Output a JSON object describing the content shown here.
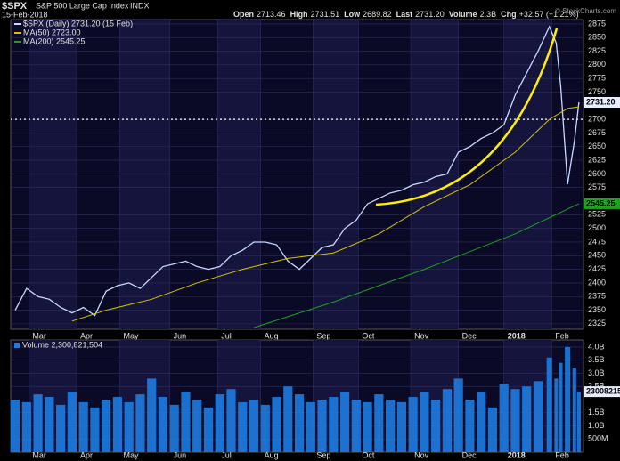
{
  "chart_data": [
    {
      "type": "line",
      "symbol": "$SPX",
      "name": "S&P 500 Large Cap Index",
      "exchange": "INDX",
      "date": "15-Feb-2018",
      "quote": [
        {
          "label": "Open",
          "value": "2713.46"
        },
        {
          "label": "High",
          "value": "2731.51"
        },
        {
          "label": "Low",
          "value": "2689.82"
        },
        {
          "label": "Last",
          "value": "2731.20"
        },
        {
          "label": "Volume",
          "value": "2.3B"
        },
        {
          "label": "Chg",
          "value": "+32.57 (+1.21%)"
        }
      ],
      "watermark": "© StockCharts.com",
      "xlim": [
        -2,
        250
      ],
      "xticks": [
        {
          "value": 6,
          "label": "Mar"
        },
        {
          "value": 27,
          "label": "Apr"
        },
        {
          "value": 46,
          "label": "May"
        },
        {
          "value": 68,
          "label": "Jun"
        },
        {
          "value": 89,
          "label": "Jul"
        },
        {
          "value": 108,
          "label": "Aug"
        },
        {
          "value": 131,
          "label": "Sep"
        },
        {
          "value": 151,
          "label": "Oct"
        },
        {
          "value": 174,
          "label": "Nov"
        },
        {
          "value": 195,
          "label": "Dec"
        },
        {
          "value": 215,
          "label": "2018"
        },
        {
          "value": 236,
          "label": "Feb"
        }
      ],
      "ylim": [
        2315,
        2883
      ],
      "yticks": [
        2325,
        2350,
        2375,
        2400,
        2425,
        2450,
        2475,
        2500,
        2525,
        2575,
        2600,
        2625,
        2650,
        2675,
        2700,
        2750,
        2775,
        2800,
        2825,
        2850,
        2875
      ],
      "grid": true,
      "reference_line": 2700,
      "series": [
        {
          "name": "$SPX (Daily) 2731.20 (15 Feb)",
          "color": "#c8d8ff",
          "x": [
            0,
            5,
            10,
            15,
            20,
            25,
            30,
            35,
            40,
            45,
            50,
            55,
            60,
            65,
            70,
            75,
            80,
            85,
            90,
            95,
            100,
            105,
            110,
            115,
            120,
            125,
            130,
            135,
            140,
            145,
            150,
            155,
            160,
            165,
            170,
            175,
            180,
            185,
            190,
            195,
            200,
            205,
            210,
            215,
            220,
            225,
            230,
            235,
            238,
            240,
            243,
            246,
            248
          ],
          "values": [
            2350,
            2390,
            2375,
            2370,
            2355,
            2345,
            2355,
            2340,
            2385,
            2395,
            2400,
            2390,
            2410,
            2430,
            2435,
            2440,
            2430,
            2425,
            2430,
            2450,
            2460,
            2475,
            2475,
            2470,
            2440,
            2425,
            2445,
            2465,
            2470,
            2500,
            2515,
            2545,
            2555,
            2565,
            2570,
            2580,
            2585,
            2595,
            2600,
            2640,
            2650,
            2665,
            2675,
            2690,
            2745,
            2785,
            2825,
            2870,
            2840,
            2760,
            2581,
            2660,
            2731.2
          ]
        },
        {
          "name": "MA(50) 2723.00",
          "color": "#d4c400",
          "x": [
            25,
            40,
            60,
            80,
            100,
            120,
            140,
            160,
            180,
            200,
            220,
            235,
            243,
            248
          ],
          "values": [
            2330,
            2350,
            2370,
            2400,
            2425,
            2445,
            2455,
            2490,
            2540,
            2580,
            2640,
            2700,
            2720,
            2723
          ]
        },
        {
          "name": "MA(200) 2545.25",
          "color": "#1fa01f",
          "x": [
            105,
            140,
            180,
            220,
            248
          ],
          "values": [
            2318,
            2365,
            2425,
            2490,
            2545.25
          ]
        }
      ],
      "markers": [
        {
          "value": 2731.2,
          "label": "2731.20",
          "color": "#e8ecff"
        },
        {
          "value": 2545.25,
          "label": "2545.25",
          "color": "#1fa01f"
        }
      ]
    },
    {
      "type": "bar",
      "xlim": [
        -2,
        250
      ],
      "xticks": [
        {
          "value": 6,
          "label": "Mar"
        },
        {
          "value": 27,
          "label": "Apr"
        },
        {
          "value": 46,
          "label": "May"
        },
        {
          "value": 68,
          "label": "Jun"
        },
        {
          "value": 89,
          "label": "Jul"
        },
        {
          "value": 108,
          "label": "Aug"
        },
        {
          "value": 131,
          "label": "Sep"
        },
        {
          "value": 151,
          "label": "Oct"
        },
        {
          "value": 174,
          "label": "Nov"
        },
        {
          "value": 195,
          "label": "Dec"
        },
        {
          "value": 215,
          "label": "2018"
        },
        {
          "value": 236,
          "label": "Feb"
        }
      ],
      "ylim": [
        0,
        4270000000
      ],
      "yticks": [
        {
          "value": 500000000,
          "label": "500M"
        },
        {
          "value": 1000000000,
          "label": "1.0B"
        },
        {
          "value": 1500000000,
          "label": "1.5B"
        },
        {
          "value": 2500000000,
          "label": "2.5B"
        },
        {
          "value": 3000000000,
          "label": "3.0B"
        },
        {
          "value": 3500000000,
          "label": "3.5B"
        },
        {
          "value": 4000000000,
          "label": "4.0B"
        }
      ],
      "grid": true,
      "series": [
        {
          "name": "Volume 2,300,821,504",
          "color": "#1e7be0",
          "x": [
            0,
            5,
            10,
            15,
            20,
            25,
            30,
            35,
            40,
            45,
            50,
            55,
            60,
            65,
            70,
            75,
            80,
            85,
            90,
            95,
            100,
            105,
            110,
            115,
            120,
            125,
            130,
            135,
            140,
            145,
            150,
            155,
            160,
            165,
            170,
            175,
            180,
            185,
            190,
            195,
            200,
            205,
            210,
            215,
            220,
            225,
            230,
            235,
            238,
            240,
            243,
            246,
            248
          ],
          "values": [
            2000000000,
            1900000000,
            2200000000,
            2100000000,
            1800000000,
            2300000000,
            1900000000,
            1700000000,
            2000000000,
            2100000000,
            1900000000,
            2200000000,
            2800000000,
            2100000000,
            1800000000,
            2300000000,
            2000000000,
            1700000000,
            2200000000,
            2400000000,
            1900000000,
            2000000000,
            1800000000,
            2100000000,
            2500000000,
            2200000000,
            1900000000,
            2000000000,
            2100000000,
            2300000000,
            2000000000,
            1900000000,
            2200000000,
            2000000000,
            1900000000,
            2100000000,
            2300000000,
            2000000000,
            2400000000,
            2800000000,
            2000000000,
            2300000000,
            1700000000,
            2600000000,
            2400000000,
            2500000000,
            2700000000,
            3600000000,
            2800000000,
            3400000000,
            4000000000,
            3200000000,
            2300821504
          ]
        }
      ],
      "markers": [
        {
          "value": 2300821504,
          "label": "2300821504",
          "color": "#e8ecff"
        }
      ]
    }
  ]
}
